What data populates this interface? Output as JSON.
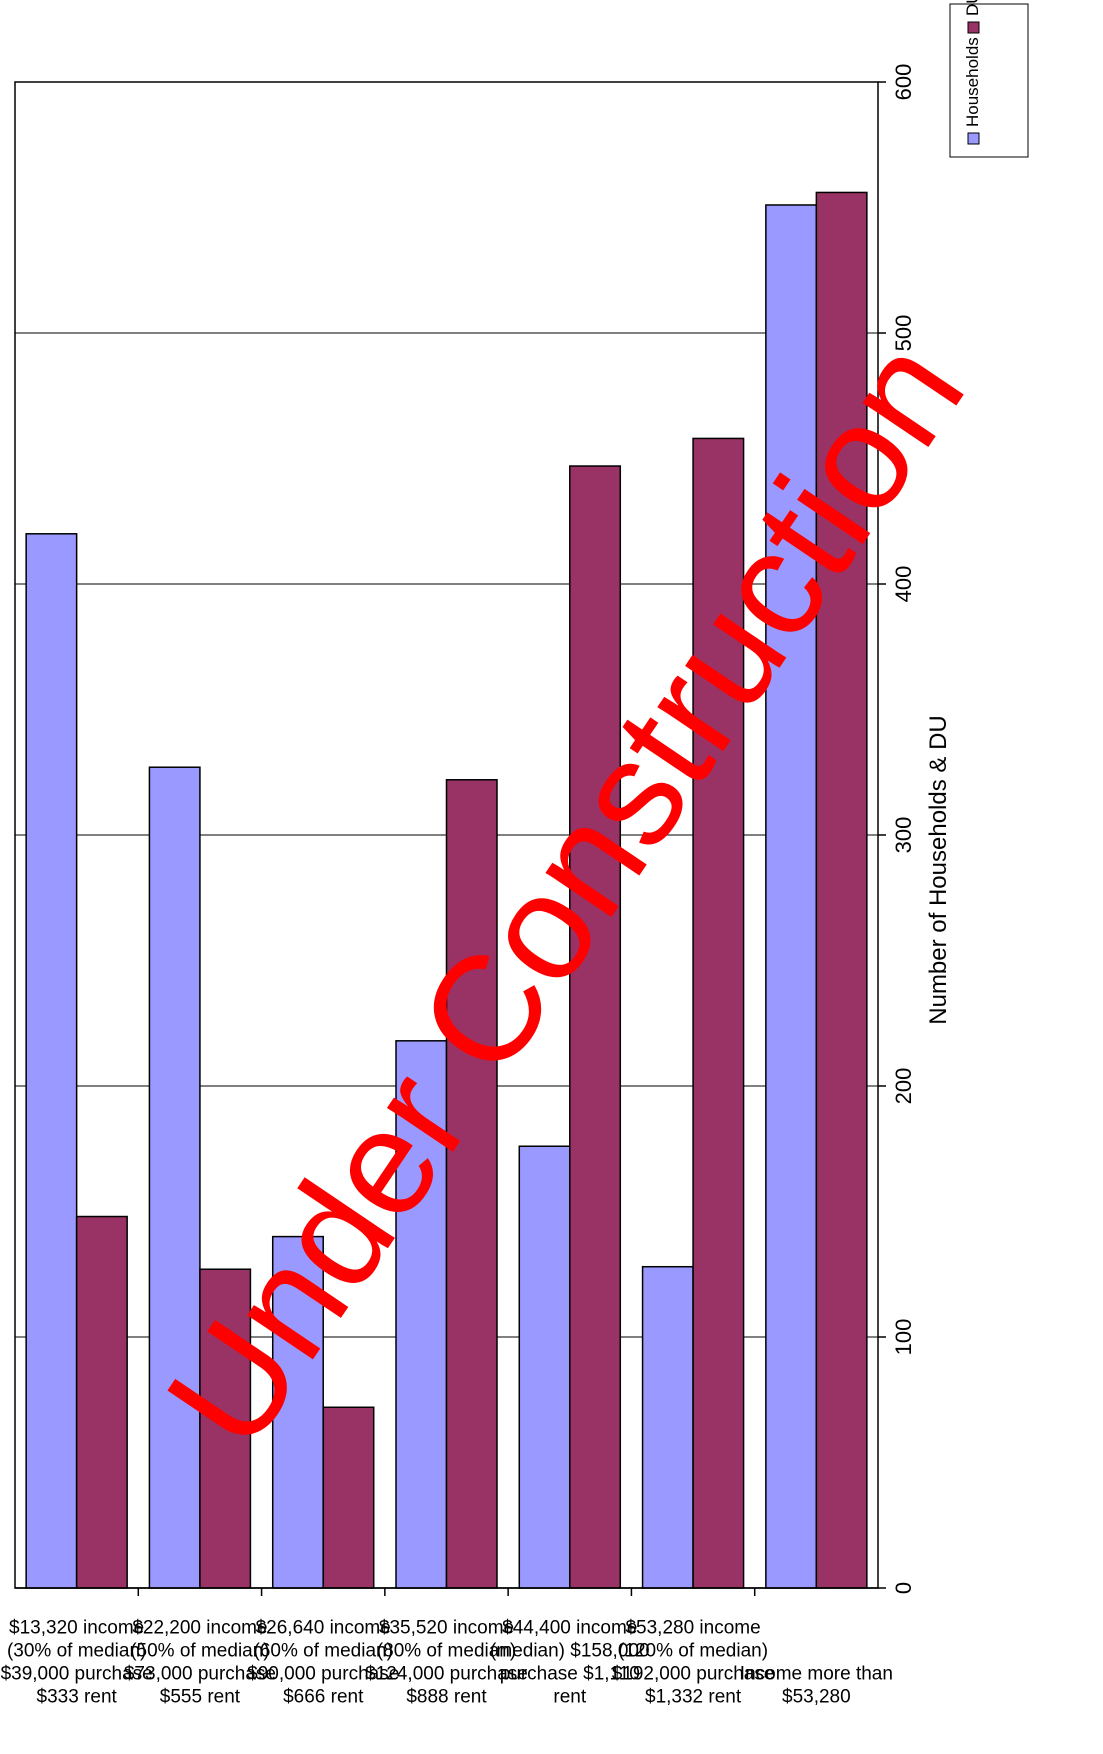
{
  "chart_data": {
    "type": "bar",
    "orientation": "horizontal",
    "categories": [
      [
        "$13,320 income",
        "(30% of median)",
        "$39,000 purchase",
        "$333 rent"
      ],
      [
        "$22,200 income",
        "(50% of median)",
        "$73,000 purchase",
        "$555 rent"
      ],
      [
        "$26,640 income",
        "(60% of median)",
        "$90,000 purchase",
        "$666 rent"
      ],
      [
        "$35,520 income",
        "(80% of median)",
        "$124,000 purchase",
        "$888 rent"
      ],
      [
        "$44,400 income",
        "(median) $158,000",
        "purchase $1,110",
        "rent"
      ],
      [
        "$53,280 income",
        "(120% of median)",
        "$192,000 purchase",
        "$1,332 rent"
      ],
      [
        "Income more than",
        "$53,280"
      ]
    ],
    "series": [
      {
        "name": "Households",
        "color": "#9999ff",
        "values": [
          420,
          327,
          140,
          218,
          176,
          128,
          551
        ]
      },
      {
        "name": "DU",
        "color": "#993366",
        "values": [
          148,
          127,
          72,
          322,
          447,
          458,
          556
        ]
      }
    ],
    "title": "",
    "xlabel": "",
    "ylabel": "Number of Households & DU",
    "ylim": [
      0,
      600
    ],
    "ticks": [
      0,
      100,
      200,
      300,
      400,
      500,
      600
    ],
    "grid": true,
    "legend_position": "top-right"
  },
  "watermark": "Under Construction"
}
